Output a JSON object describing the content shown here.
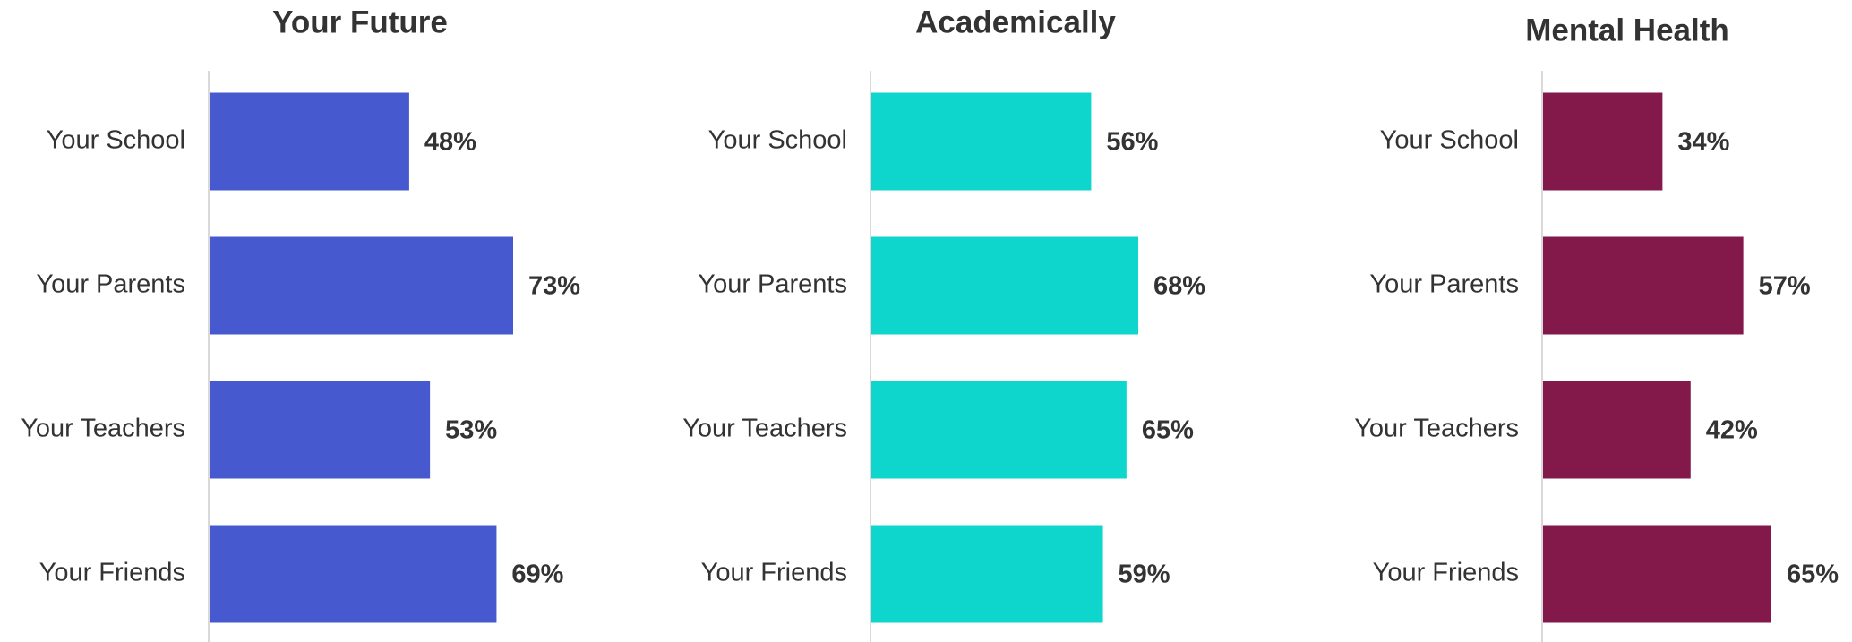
{
  "chart_data": [
    {
      "type": "bar",
      "orientation": "horizontal",
      "title": "Your Future",
      "categories": [
        "Your School",
        "Your Parents",
        "Your Teachers",
        "Your Friends"
      ],
      "values": [
        48,
        73,
        53,
        69
      ],
      "value_labels": [
        "48%",
        "73%",
        "53%",
        "69%"
      ],
      "color": "#4659cf"
    },
    {
      "type": "bar",
      "orientation": "horizontal",
      "title": "Academically",
      "categories": [
        "Your School",
        "Your Parents",
        "Your Teachers",
        "Your Friends"
      ],
      "values": [
        56,
        68,
        65,
        59
      ],
      "value_labels": [
        "56%",
        "68%",
        "65%",
        "59%"
      ],
      "color": "#0fd6cc"
    },
    {
      "type": "bar",
      "orientation": "horizontal",
      "title": "Mental Health",
      "categories": [
        "Your School",
        "Your Parents",
        "Your Teachers",
        "Your Friends"
      ],
      "values": [
        34,
        57,
        42,
        65
      ],
      "value_labels": [
        "34%",
        "57%",
        "42%",
        "65%"
      ],
      "color": "#83184b"
    }
  ]
}
